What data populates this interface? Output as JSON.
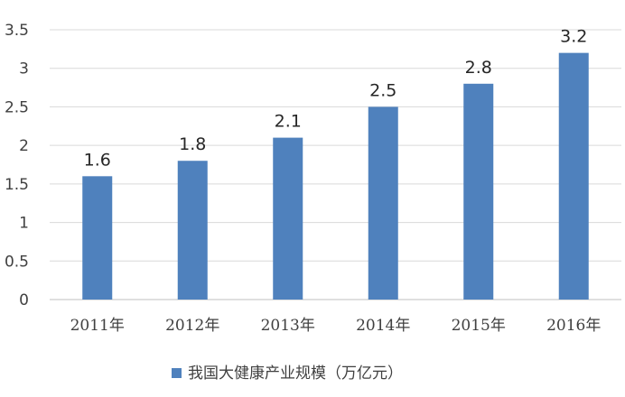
{
  "chart_data": {
    "type": "bar",
    "categories": [
      "2011年",
      "2012年",
      "2013年",
      "2014年",
      "2015年",
      "2016年"
    ],
    "series": [
      {
        "name": "我国大健康产业规模（万亿元）",
        "values": [
          1.6,
          1.8,
          2.1,
          2.5,
          2.8,
          3.2
        ]
      }
    ],
    "data_labels": [
      "1.6",
      "1.8",
      "2.1",
      "2.5",
      "2.8",
      "3.2"
    ],
    "y_ticks": [
      "0",
      "0.5",
      "1",
      "1.5",
      "2",
      "2.5",
      "3",
      "3.5"
    ],
    "ylim": [
      0,
      3.5
    ],
    "grid": true,
    "legend_position": "bottom",
    "title": "",
    "xlabel": "",
    "ylabel": "",
    "colors": {
      "bar": "#4f81bd"
    }
  }
}
